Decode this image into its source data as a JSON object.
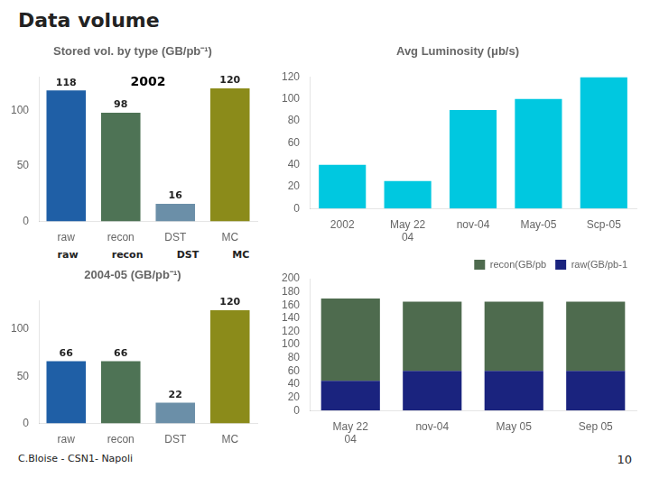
{
  "title": "Data volume",
  "annotations": [
    "C.Bloise - CSN1- Napoli",
    "10"
  ],
  "chart_data": [
    {
      "type": "bar",
      "title": "Stored vol. by type (GB/pb⁻¹)",
      "categories": [
        "raw",
        "recon",
        "DST",
        "MC"
      ],
      "values": [
        118,
        98,
        16,
        120
      ],
      "colors": [
        "#1f5fa6",
        "#4e7355",
        "#6b8fa8",
        "#8b8b1a"
      ],
      "ylim": [
        0,
        130
      ],
      "yticks": [
        0,
        50,
        100
      ],
      "grid": false,
      "data_labels": true,
      "annotations": [
        {
          "text": "2002",
          "y": 120
        }
      ]
    },
    {
      "type": "bar",
      "title": "Avg Luminosity (μb/s)",
      "categories": [
        "2002",
        "May 22\n04",
        "nov-04",
        "May-05",
        "Scp-05"
      ],
      "values": [
        40,
        25,
        90,
        100,
        120
      ],
      "color": "#00c8e0",
      "ylim": [
        0,
        120
      ],
      "yticks": [
        0,
        20,
        40,
        60,
        80,
        100,
        120
      ],
      "grid": false
    },
    {
      "type": "bar",
      "title": "2004-05 (GB/pb⁻¹)",
      "categories": [
        "raw",
        "recon",
        "DST",
        "MC"
      ],
      "values": [
        66,
        66,
        22,
        120
      ],
      "colors": [
        "#1f5fa6",
        "#4e7355",
        "#6b8fa8",
        "#8b8b1a"
      ],
      "ylim": [
        0,
        130
      ],
      "yticks": [
        0,
        50,
        100
      ],
      "grid": false,
      "data_labels": true,
      "annotations": [
        "raw",
        "recon",
        "DST",
        "MC"
      ]
    },
    {
      "type": "bar",
      "categories": [
        "May 22\n04",
        "nov-04",
        "May 05",
        "Sep 05"
      ],
      "series": [
        {
          "name": "raw(GB/pb-1",
          "color": "#1a237e",
          "values": [
            45,
            60,
            60,
            60
          ]
        },
        {
          "name": "recon(GB/pb",
          "color": "#4e6b4e",
          "values": [
            125,
            105,
            105,
            105
          ]
        }
      ],
      "stacked": true,
      "legend": "upper right",
      "ylim": [
        0,
        200
      ],
      "yticks": [
        0,
        20,
        40,
        60,
        80,
        100,
        120,
        140,
        160,
        180,
        200
      ],
      "grid": false
    }
  ]
}
